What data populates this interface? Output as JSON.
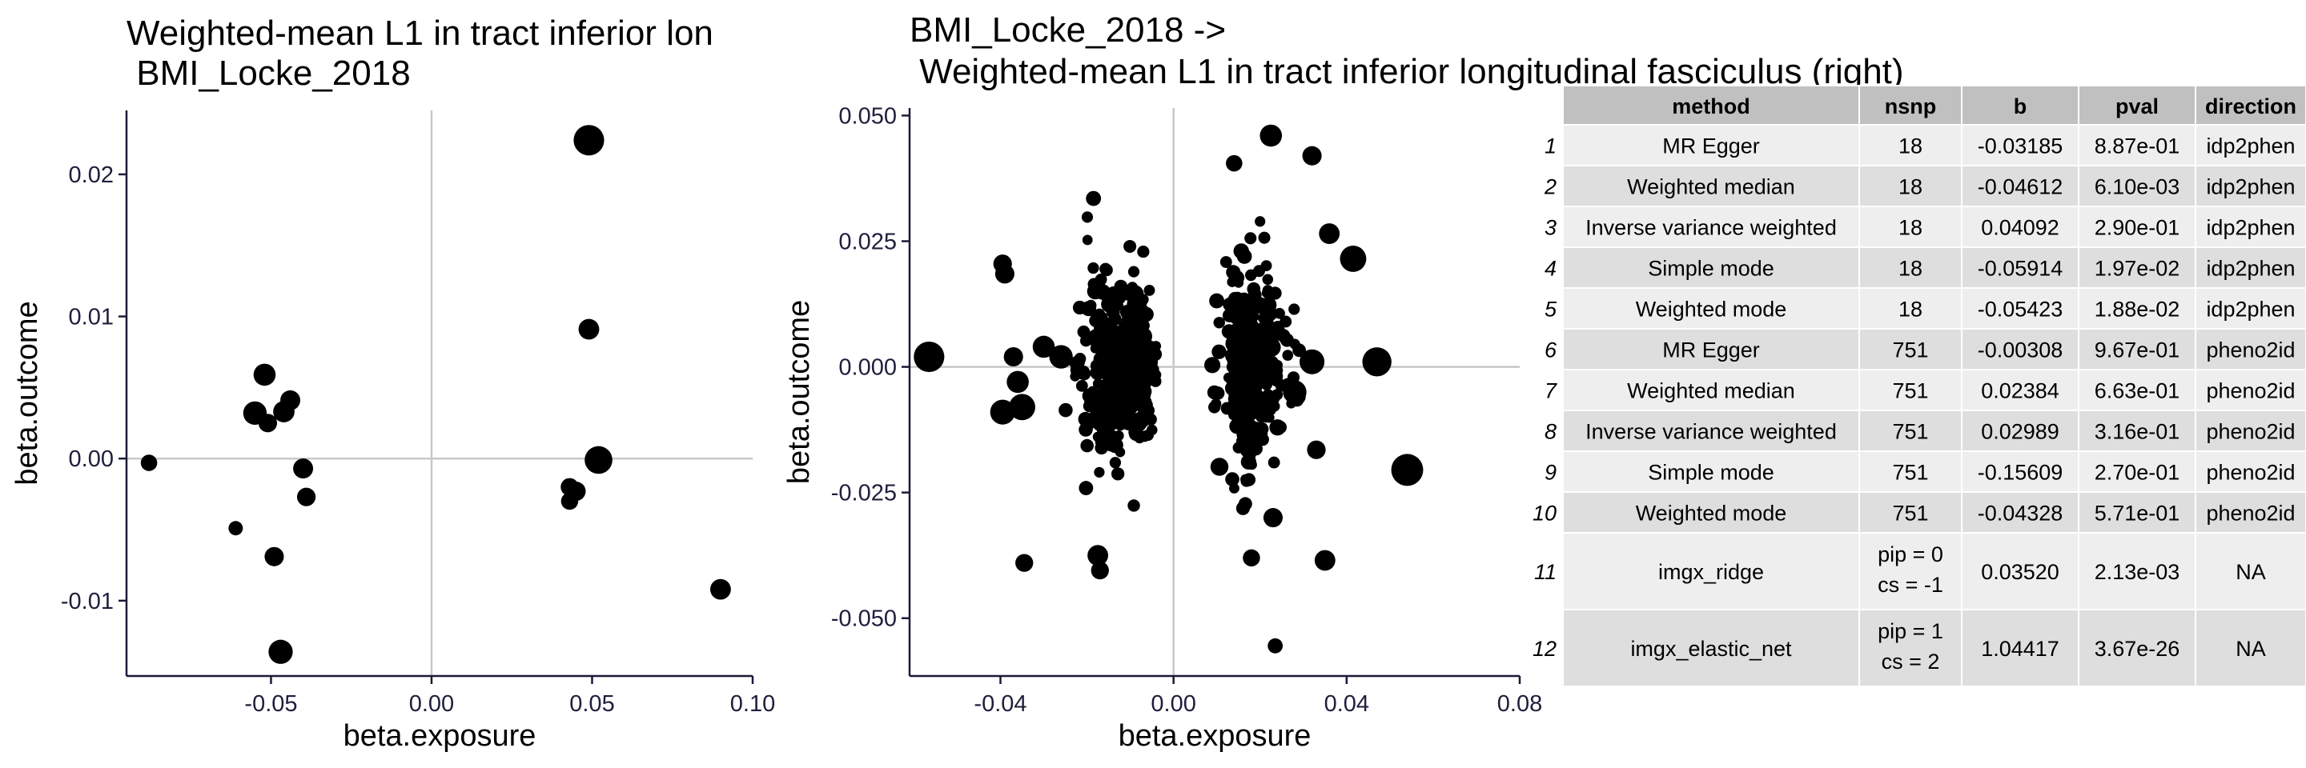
{
  "colors": {
    "point": "#000000",
    "axis": "#1a1a38",
    "refline": "#c8c8c8",
    "header_bg": "#c0c0c0",
    "row_light": "#eeeeee",
    "row_dark": "#dedede"
  },
  "chart_data": [
    {
      "type": "scatter",
      "title_lines": [
        "Weighted-mean L1 in tract inferior lon",
        " BMI_Locke_2018"
      ],
      "xlabel": "beta.exposure",
      "ylabel": "beta.outcome",
      "xlim": [
        -0.095,
        0.1
      ],
      "ylim": [
        -0.0153,
        0.0245
      ],
      "xticks": [
        -0.05,
        0.0,
        0.05,
        0.1
      ],
      "xtick_labels": [
        "-0.05",
        "0.00",
        "0.05",
        "0.10"
      ],
      "yticks": [
        -0.01,
        0.0,
        0.01,
        0.02
      ],
      "ytick_labels": [
        "-0.01",
        "0.00",
        "0.01",
        "0.02"
      ],
      "points": [
        {
          "x": -0.088,
          "y": -0.0003,
          "size": 1.2
        },
        {
          "x": -0.061,
          "y": -0.0049,
          "size": 0.9
        },
        {
          "x": -0.055,
          "y": 0.0032,
          "size": 2.2
        },
        {
          "x": -0.052,
          "y": 0.0059,
          "size": 2.0
        },
        {
          "x": -0.051,
          "y": 0.0025,
          "size": 1.5
        },
        {
          "x": -0.049,
          "y": -0.0069,
          "size": 1.6
        },
        {
          "x": -0.046,
          "y": 0.0033,
          "size": 1.9
        },
        {
          "x": -0.044,
          "y": 0.0041,
          "size": 1.7
        },
        {
          "x": -0.047,
          "y": -0.0136,
          "size": 2.3
        },
        {
          "x": -0.04,
          "y": -0.0007,
          "size": 1.7
        },
        {
          "x": -0.039,
          "y": -0.0027,
          "size": 1.5
        },
        {
          "x": 0.043,
          "y": -0.002,
          "size": 1.4
        },
        {
          "x": 0.043,
          "y": -0.003,
          "size": 1.3
        },
        {
          "x": 0.045,
          "y": -0.0023,
          "size": 1.6
        },
        {
          "x": 0.049,
          "y": 0.0224,
          "size": 3.2
        },
        {
          "x": 0.049,
          "y": 0.0091,
          "size": 1.8
        },
        {
          "x": 0.052,
          "y": -0.0001,
          "size": 2.8
        },
        {
          "x": 0.09,
          "y": -0.0092,
          "size": 1.8
        }
      ]
    },
    {
      "type": "scatter",
      "title_lines": [
        "BMI_Locke_2018 ->",
        " Weighted-mean L1 in tract inferior longitudinal fasciculus (right)"
      ],
      "xlabel": "beta.exposure",
      "ylabel": "beta.outcome",
      "xlim": [
        -0.061,
        0.08
      ],
      "ylim": [
        -0.0615,
        0.0515
      ],
      "xticks": [
        -0.04,
        0.0,
        0.04,
        0.08
      ],
      "xtick_labels": [
        "-0.04",
        "0.00",
        "0.04",
        "0.08"
      ],
      "yticks": [
        -0.05,
        -0.025,
        0.0,
        0.025,
        0.05
      ],
      "ytick_labels": [
        "-0.050",
        "-0.025",
        "0.000",
        "0.025",
        "0.050"
      ],
      "nsnp": 751,
      "highlight_points": [
        {
          "x": -0.0565,
          "y": 0.002,
          "size": 3.2
        },
        {
          "x": -0.0395,
          "y": 0.0205,
          "size": 1.5
        },
        {
          "x": -0.039,
          "y": 0.0185,
          "size": 1.6
        },
        {
          "x": -0.0395,
          "y": -0.009,
          "size": 2.4
        },
        {
          "x": -0.035,
          "y": -0.008,
          "size": 2.6
        },
        {
          "x": -0.036,
          "y": -0.003,
          "size": 2.0
        },
        {
          "x": -0.037,
          "y": 0.002,
          "size": 1.6
        },
        {
          "x": -0.0345,
          "y": -0.039,
          "size": 1.4
        },
        {
          "x": -0.03,
          "y": 0.004,
          "size": 2.0
        },
        {
          "x": -0.026,
          "y": 0.002,
          "size": 2.2
        },
        {
          "x": -0.0185,
          "y": 0.0335,
          "size": 1.0
        },
        {
          "x": -0.0175,
          "y": -0.0375,
          "size": 1.8
        },
        {
          "x": -0.017,
          "y": -0.0405,
          "size": 1.4
        },
        {
          "x": 0.0225,
          "y": 0.046,
          "size": 2.0
        },
        {
          "x": 0.0235,
          "y": -0.0555,
          "size": 1.0
        },
        {
          "x": 0.032,
          "y": 0.042,
          "size": 1.6
        },
        {
          "x": 0.036,
          "y": 0.0265,
          "size": 1.8
        },
        {
          "x": 0.0415,
          "y": 0.0215,
          "size": 2.6
        },
        {
          "x": 0.047,
          "y": 0.001,
          "size": 3.0
        },
        {
          "x": 0.054,
          "y": -0.0205,
          "size": 3.4
        },
        {
          "x": 0.035,
          "y": -0.0385,
          "size": 1.8
        },
        {
          "x": 0.033,
          "y": -0.0165,
          "size": 1.5
        },
        {
          "x": 0.023,
          "y": -0.03,
          "size": 1.6
        },
        {
          "x": 0.032,
          "y": 0.001,
          "size": 2.4
        },
        {
          "x": 0.028,
          "y": -0.005,
          "size": 2.2
        },
        {
          "x": 0.014,
          "y": 0.0405,
          "size": 1.2
        },
        {
          "x": 0.018,
          "y": -0.038,
          "size": 1.3
        }
      ]
    }
  ],
  "table": {
    "columns": [
      "method",
      "nsnp",
      "b",
      "pval",
      "direction"
    ],
    "rows": [
      {
        "idx": "1",
        "method": "MR Egger",
        "nsnp": [
          "18"
        ],
        "b": "-0.03185",
        "pval": "8.87e-01",
        "direction": "idp2phen"
      },
      {
        "idx": "2",
        "method": "Weighted median",
        "nsnp": [
          "18"
        ],
        "b": "-0.04612",
        "pval": "6.10e-03",
        "direction": "idp2phen"
      },
      {
        "idx": "3",
        "method": "Inverse variance weighted",
        "nsnp": [
          "18"
        ],
        "b": "0.04092",
        "pval": "2.90e-01",
        "direction": "idp2phen"
      },
      {
        "idx": "4",
        "method": "Simple mode",
        "nsnp": [
          "18"
        ],
        "b": "-0.05914",
        "pval": "1.97e-02",
        "direction": "idp2phen"
      },
      {
        "idx": "5",
        "method": "Weighted mode",
        "nsnp": [
          "18"
        ],
        "b": "-0.05423",
        "pval": "1.88e-02",
        "direction": "idp2phen"
      },
      {
        "idx": "6",
        "method": "MR Egger",
        "nsnp": [
          "751"
        ],
        "b": "-0.00308",
        "pval": "9.67e-01",
        "direction": "pheno2id"
      },
      {
        "idx": "7",
        "method": "Weighted median",
        "nsnp": [
          "751"
        ],
        "b": "0.02384",
        "pval": "6.63e-01",
        "direction": "pheno2id"
      },
      {
        "idx": "8",
        "method": "Inverse variance weighted",
        "nsnp": [
          "751"
        ],
        "b": "0.02989",
        "pval": "3.16e-01",
        "direction": "pheno2id"
      },
      {
        "idx": "9",
        "method": "Simple mode",
        "nsnp": [
          "751"
        ],
        "b": "-0.15609",
        "pval": "2.70e-01",
        "direction": "pheno2id"
      },
      {
        "idx": "10",
        "method": "Weighted mode",
        "nsnp": [
          "751"
        ],
        "b": "-0.04328",
        "pval": "5.71e-01",
        "direction": "pheno2id"
      },
      {
        "idx": "11",
        "method": "imgx_ridge",
        "nsnp": [
          "pip = 0",
          "cs = -1"
        ],
        "b": "0.03520",
        "pval": "2.13e-03",
        "direction": "NA"
      },
      {
        "idx": "12",
        "method": "imgx_elastic_net",
        "nsnp": [
          "pip = 1",
          "cs = 2"
        ],
        "b": "1.04417",
        "pval": "3.67e-26",
        "direction": "NA"
      }
    ]
  }
}
